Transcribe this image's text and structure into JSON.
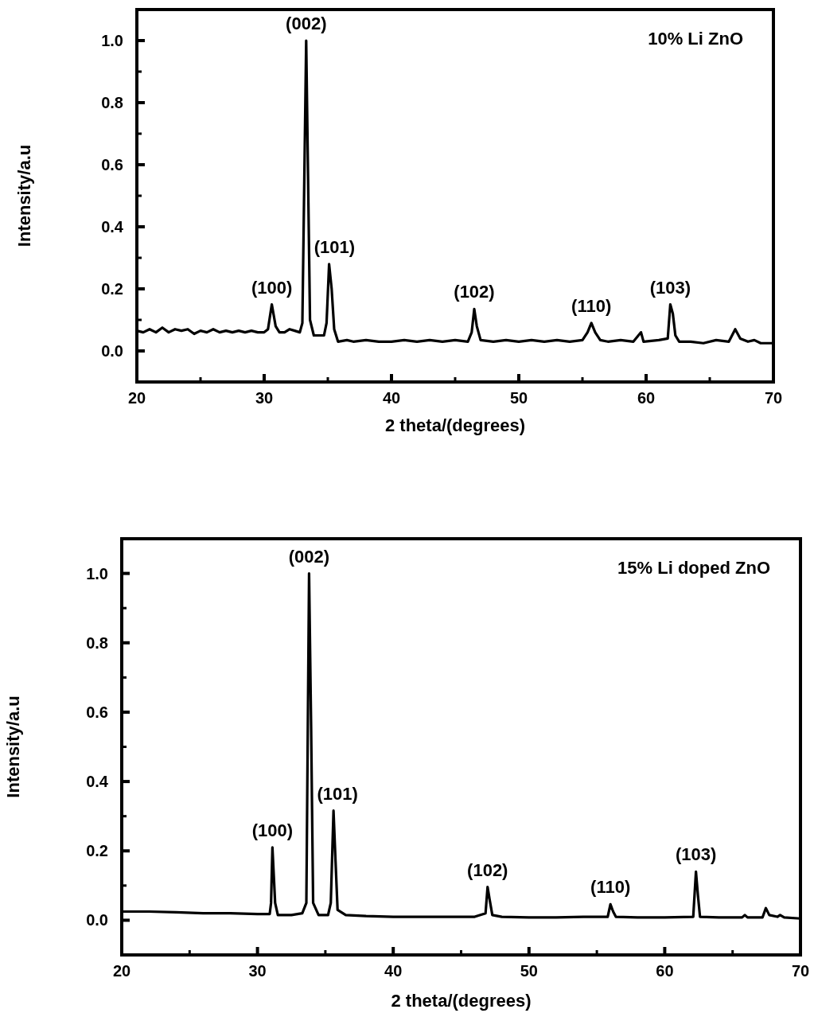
{
  "chart_data": [
    {
      "type": "line",
      "title": "10% Li ZnO",
      "xlabel": "2 theta/(degrees)",
      "ylabel": "Intensity/a.u",
      "xlim": [
        20,
        70
      ],
      "ylim": [
        -0.1,
        1.1
      ],
      "xticks": [
        20,
        {
          "value": 25,
          "label": null
        },
        30,
        {
          "value": 35,
          "label": null
        },
        40,
        {
          "value": 45,
          "label": null
        },
        50,
        {
          "value": 55,
          "label": null
        },
        60,
        {
          "value": 65,
          "label": null
        },
        70
      ],
      "yticks": [
        {
          "value": 0,
          "label": "0.0"
        },
        {
          "value": 0.1,
          "label": null
        },
        0.2,
        {
          "value": 0.3,
          "label": null
        },
        0.4,
        {
          "value": 0.5,
          "label": null
        },
        0.6,
        {
          "value": 0.7,
          "label": null
        },
        0.8,
        {
          "value": 0.9,
          "label": null
        },
        {
          "value": 1,
          "label": "1.0"
        }
      ],
      "grid": false,
      "marker": "none",
      "line_style": "solid",
      "series": [
        {
          "color": "#000000",
          "x": [
            20,
            20.5,
            21,
            21.5,
            22,
            22.5,
            23,
            23.5,
            24,
            24.5,
            25,
            25.5,
            26,
            26.5,
            27,
            27.5,
            28,
            28.5,
            29,
            29.5,
            30,
            30.3,
            30.6,
            30.9,
            31.2,
            31.6,
            32,
            32.4,
            32.8,
            33,
            33.3,
            33.6,
            33.9,
            34.3,
            34.7,
            34.9,
            35.1,
            35.3,
            35.5,
            35.8,
            36.5,
            37,
            38,
            39,
            40,
            41,
            42,
            43,
            44,
            45,
            46,
            46.3,
            46.5,
            46.7,
            47,
            48,
            49,
            50,
            51,
            52,
            53,
            54,
            55,
            55.4,
            55.7,
            56,
            56.4,
            57,
            58,
            59,
            59.6,
            59.8,
            61,
            61.7,
            61.9,
            62.1,
            62.3,
            62.6,
            63.5,
            64.5,
            65.5,
            66.5,
            67,
            67.4,
            68,
            68.5,
            69,
            70
          ],
          "values": [
            0.065,
            0.06,
            0.07,
            0.06,
            0.075,
            0.06,
            0.07,
            0.065,
            0.07,
            0.055,
            0.065,
            0.06,
            0.07,
            0.06,
            0.065,
            0.06,
            0.065,
            0.06,
            0.065,
            0.06,
            0.06,
            0.07,
            0.15,
            0.08,
            0.06,
            0.06,
            0.07,
            0.065,
            0.06,
            0.09,
            1.0,
            0.1,
            0.05,
            0.05,
            0.05,
            0.09,
            0.28,
            0.2,
            0.07,
            0.03,
            0.035,
            0.03,
            0.035,
            0.03,
            0.03,
            0.035,
            0.03,
            0.035,
            0.03,
            0.035,
            0.03,
            0.06,
            0.135,
            0.08,
            0.035,
            0.03,
            0.035,
            0.03,
            0.035,
            0.03,
            0.035,
            0.03,
            0.035,
            0.06,
            0.09,
            0.06,
            0.035,
            0.03,
            0.035,
            0.03,
            0.06,
            0.03,
            0.035,
            0.04,
            0.15,
            0.12,
            0.05,
            0.03,
            0.03,
            0.025,
            0.035,
            0.03,
            0.07,
            0.04,
            0.03,
            0.035,
            0.025,
            0.025
          ]
        }
      ],
      "annotations": [
        {
          "text": "(100)",
          "x": 30.6,
          "y": 0.15
        },
        {
          "text": "(002)",
          "x": 33.3,
          "y": 1.0
        },
        {
          "text": "(101)",
          "x": 35.1,
          "y": 0.28
        },
        {
          "text": "(102)",
          "x": 46.5,
          "y": 0.135
        },
        {
          "text": "(110)",
          "x": 55.7,
          "y": 0.09
        },
        {
          "text": "(103)",
          "x": 61.9,
          "y": 0.15
        }
      ]
    },
    {
      "type": "line",
      "title": "15% Li doped ZnO",
      "xlabel": "2 theta/(degrees)",
      "ylabel": "Intensity/a.u",
      "xlim": [
        20,
        70
      ],
      "ylim": [
        -0.1,
        1.1
      ],
      "xticks": [
        20,
        {
          "value": 25,
          "label": null
        },
        30,
        {
          "value": 35,
          "label": null
        },
        40,
        {
          "value": 45,
          "label": null
        },
        50,
        {
          "value": 55,
          "label": null
        },
        60,
        {
          "value": 65,
          "label": null
        },
        70
      ],
      "yticks": [
        {
          "value": 0,
          "label": "0.0"
        },
        {
          "value": 0.1,
          "label": null
        },
        0.2,
        {
          "value": 0.3,
          "label": null
        },
        0.4,
        {
          "value": 0.5,
          "label": null
        },
        0.6,
        {
          "value": 0.7,
          "label": null
        },
        0.8,
        {
          "value": 0.9,
          "label": null
        },
        {
          "value": 1,
          "label": "1.0"
        }
      ],
      "grid": false,
      "marker": "none",
      "line_style": "solid",
      "series": [
        {
          "color": "#000000",
          "x": [
            20,
            22,
            24,
            26,
            28,
            30,
            30.9,
            31,
            31.1,
            31.3,
            31.5,
            32.5,
            33.3,
            33.6,
            33.8,
            33.95,
            34.1,
            34.5,
            35.2,
            35.4,
            35.6,
            35.75,
            35.9,
            36.5,
            38,
            40,
            42,
            44,
            46,
            46.8,
            46.95,
            47.1,
            47.3,
            48,
            50,
            52,
            54,
            55.8,
            56,
            56.2,
            56.4,
            58,
            60,
            62.1,
            62.3,
            62.45,
            62.6,
            64,
            65.7,
            65.9,
            66.1,
            67.2,
            67.45,
            67.7,
            68.3,
            68.5,
            68.8,
            70
          ],
          "values": [
            0.025,
            0.025,
            0.023,
            0.02,
            0.02,
            0.018,
            0.018,
            0.05,
            0.21,
            0.05,
            0.015,
            0.015,
            0.02,
            0.05,
            1.0,
            0.56,
            0.05,
            0.015,
            0.015,
            0.05,
            0.316,
            0.17,
            0.03,
            0.015,
            0.012,
            0.01,
            0.01,
            0.01,
            0.01,
            0.02,
            0.096,
            0.06,
            0.015,
            0.01,
            0.008,
            0.008,
            0.01,
            0.01,
            0.046,
            0.025,
            0.01,
            0.008,
            0.008,
            0.01,
            0.14,
            0.07,
            0.01,
            0.008,
            0.008,
            0.015,
            0.008,
            0.008,
            0.035,
            0.015,
            0.01,
            0.015,
            0.008,
            0.005
          ]
        }
      ],
      "annotations": [
        {
          "text": "(100)",
          "x": 31.1,
          "y": 0.21
        },
        {
          "text": "(002)",
          "x": 33.8,
          "y": 1.0
        },
        {
          "text": "(101)",
          "x": 35.6,
          "y": 0.316
        },
        {
          "text": "(102)",
          "x": 46.95,
          "y": 0.096
        },
        {
          "text": "(110)",
          "x": 56.0,
          "y": 0.046
        },
        {
          "text": "(103)",
          "x": 62.3,
          "y": 0.14
        }
      ]
    }
  ]
}
